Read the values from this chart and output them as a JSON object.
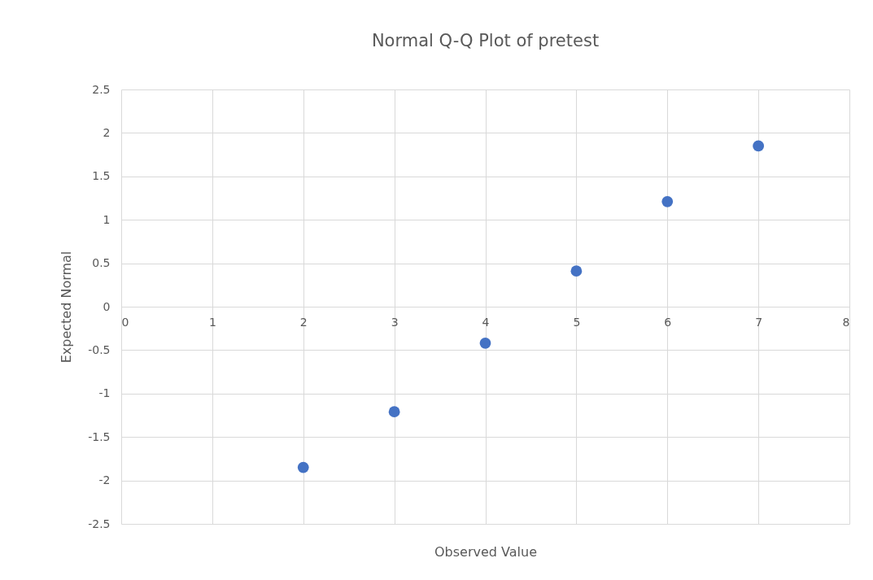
{
  "chart_data": {
    "type": "scatter",
    "title": "Normal Q-Q Plot of pretest",
    "xlabel": "Observed Value",
    "ylabel": "Expected Normal",
    "x": [
      2,
      3,
      4,
      5,
      6,
      7
    ],
    "values": [
      -1.85,
      -1.21,
      -0.42,
      0.41,
      1.21,
      1.85
    ],
    "color": "#4472c4",
    "marker": "circle",
    "xlim": [
      0,
      8
    ],
    "xticks": [
      0,
      1,
      2,
      3,
      4,
      5,
      6,
      7,
      8
    ],
    "ylim": [
      -2.5,
      2.5
    ],
    "yticks": [
      -2.5,
      -2,
      -1.5,
      -1,
      -0.5,
      0,
      0.5,
      1,
      1.5,
      2,
      2.5
    ],
    "grid": true
  }
}
